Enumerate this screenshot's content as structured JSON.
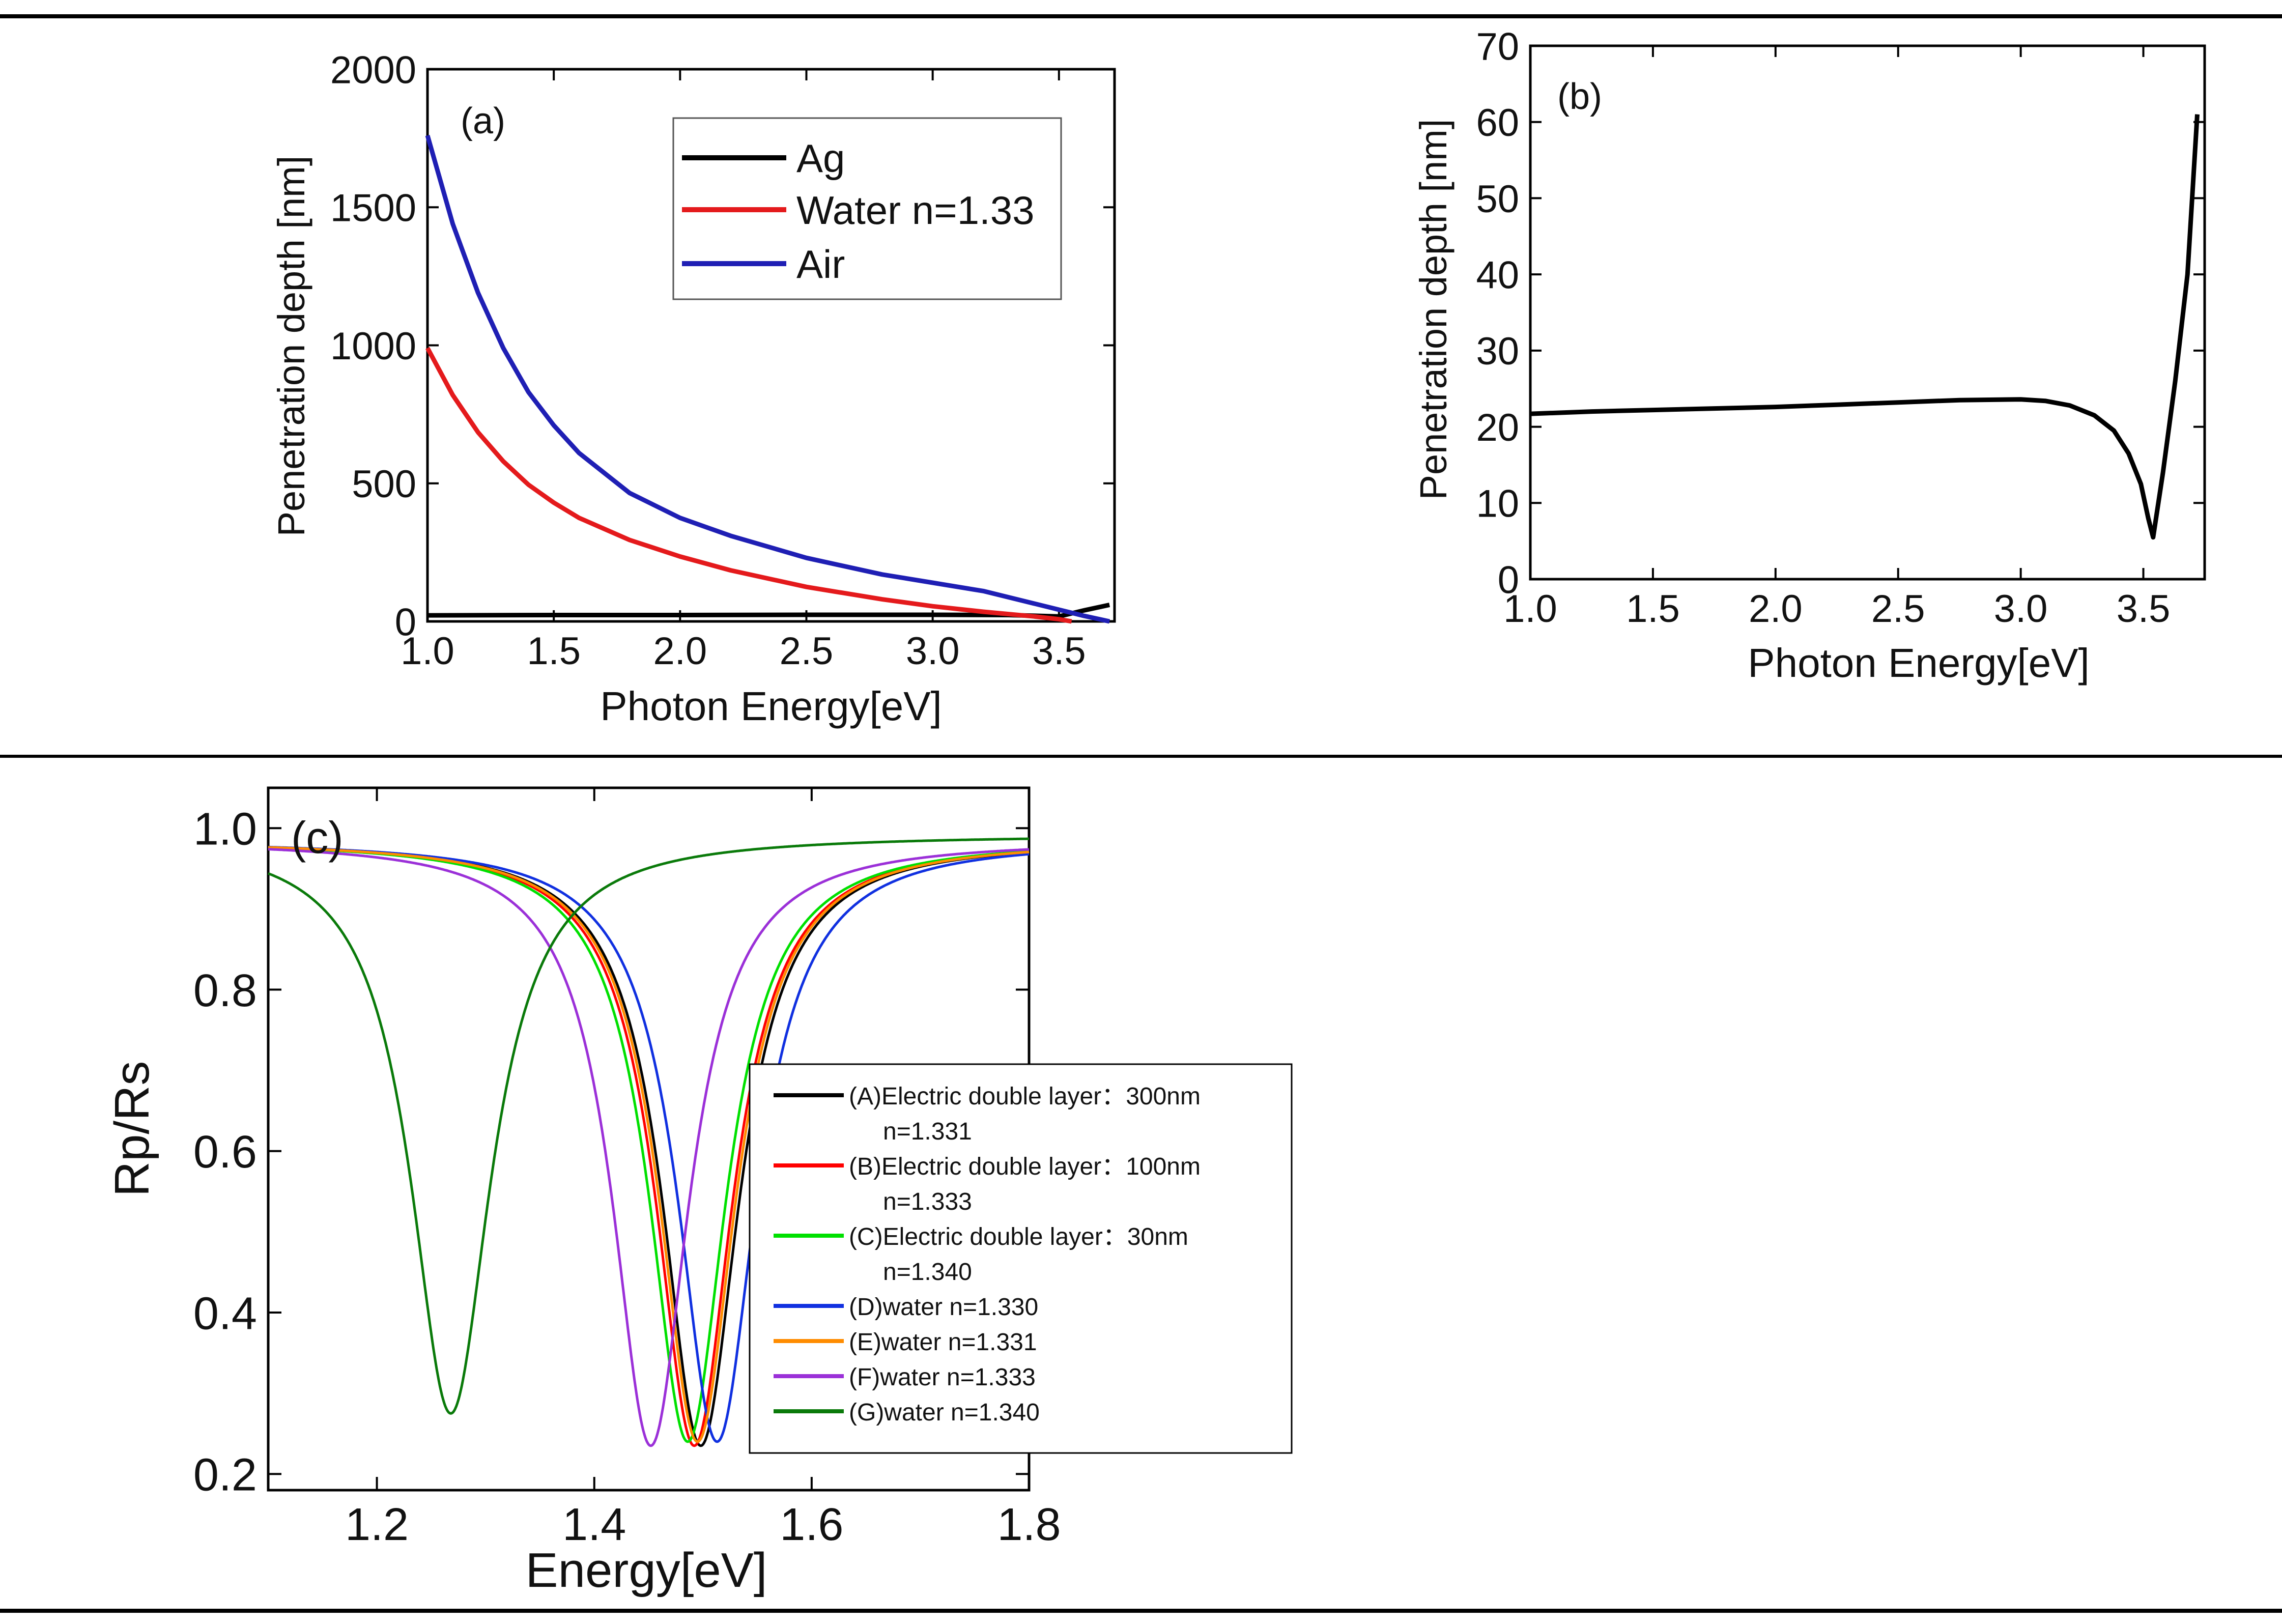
{
  "colors": {
    "ag": "#000000",
    "water": "#e41a1c",
    "air": "#1f1fb4",
    "A": "#000000",
    "B": "#ff0000",
    "C": "#00e000",
    "D": "#1030e0",
    "E": "#ff8c00",
    "F": "#9b30d8",
    "G": "#0a7a0a"
  },
  "chart_data": [
    {
      "id": "a",
      "type": "line",
      "label": "(a)",
      "xlabel": "Photon Energy[eV]",
      "ylabel": "Penetration depth [nm]",
      "xlim": [
        1.0,
        3.72
      ],
      "ylim": [
        0,
        2000
      ],
      "xticks": [
        1.0,
        1.5,
        2.0,
        2.5,
        3.0,
        3.5
      ],
      "xtick_labels": [
        "1.0",
        "1.5",
        "2.0",
        "2.5",
        "3.0",
        "3.5"
      ],
      "yticks": [
        0,
        500,
        1000,
        1500,
        2000
      ],
      "ytick_labels": [
        "0",
        "500",
        "1000",
        "1500",
        "2000"
      ],
      "legend": "top-right",
      "series": [
        {
          "key": "ag",
          "name": "Ag",
          "color": "#000000",
          "x": [
            1.0,
            1.5,
            2.0,
            2.5,
            3.0,
            3.3,
            3.5,
            3.6,
            3.7
          ],
          "y": [
            22,
            23,
            23,
            24,
            24,
            23,
            18,
            40,
            60
          ]
        },
        {
          "key": "water",
          "name": "Water n=1.33",
          "color": "#e41a1c",
          "x": [
            1.0,
            1.1,
            1.2,
            1.3,
            1.4,
            1.5,
            1.6,
            1.8,
            2.0,
            2.2,
            2.5,
            2.8,
            3.0,
            3.2,
            3.4,
            3.5,
            3.55
          ],
          "y": [
            990,
            820,
            685,
            580,
            495,
            430,
            375,
            295,
            235,
            185,
            125,
            80,
            55,
            35,
            18,
            8,
            0
          ]
        },
        {
          "key": "air",
          "name": "Air",
          "color": "#1f1fb4",
          "x": [
            1.0,
            1.1,
            1.2,
            1.3,
            1.4,
            1.5,
            1.6,
            1.8,
            2.0,
            2.2,
            2.5,
            2.8,
            3.0,
            3.2,
            3.4,
            3.6,
            3.7
          ],
          "y": [
            1760,
            1440,
            1190,
            990,
            830,
            710,
            610,
            465,
            375,
            310,
            230,
            170,
            140,
            110,
            65,
            20,
            0
          ]
        }
      ]
    },
    {
      "id": "b",
      "type": "line",
      "label": "(b)",
      "xlabel": "Photon Energy[eV]",
      "ylabel": "Penetration depth [nm]",
      "xlim": [
        1.0,
        3.75
      ],
      "ylim": [
        0,
        70
      ],
      "xticks": [
        1.0,
        1.5,
        2.0,
        2.5,
        3.0,
        3.5
      ],
      "xtick_labels": [
        "1.0",
        "1.5",
        "2.0",
        "2.5",
        "3.0",
        "3.5"
      ],
      "yticks": [
        0,
        10,
        20,
        30,
        40,
        50,
        60,
        70
      ],
      "ytick_labels": [
        "0",
        "10",
        "20",
        "30",
        "40",
        "50",
        "60",
        "70"
      ],
      "series": [
        {
          "key": "ag",
          "name": "Ag",
          "color": "#000000",
          "x": [
            1.0,
            1.25,
            1.5,
            1.75,
            2.0,
            2.25,
            2.5,
            2.75,
            3.0,
            3.1,
            3.2,
            3.3,
            3.38,
            3.44,
            3.49,
            3.52,
            3.54,
            3.58,
            3.63,
            3.68,
            3.72
          ],
          "y": [
            21.7,
            22.0,
            22.2,
            22.4,
            22.6,
            22.9,
            23.2,
            23.5,
            23.6,
            23.4,
            22.8,
            21.5,
            19.5,
            16.5,
            12.5,
            8.0,
            5.5,
            14.0,
            26.0,
            40.0,
            61.0
          ]
        }
      ]
    },
    {
      "id": "c",
      "type": "line",
      "label": "(c)",
      "xlabel": "Energy[eV]",
      "ylabel": "Rp/Rs",
      "xlim": [
        1.1,
        1.8
      ],
      "ylim": [
        0.18,
        1.05
      ],
      "xticks": [
        1.2,
        1.4,
        1.6,
        1.8
      ],
      "xtick_labels": [
        "1.2",
        "1.4",
        "1.6",
        "1.8"
      ],
      "yticks": [
        0.2,
        0.4,
        0.6,
        0.8,
        1.0
      ],
      "ytick_labels": [
        "0.2",
        "0.4",
        "0.6",
        "0.8",
        "1.0"
      ],
      "legend": "bottom-right",
      "series": [
        {
          "key": "A",
          "name": "(A)Electric double layer：300nm",
          "name2": "n=1.331",
          "color": "#000000",
          "center": 1.498,
          "min": 0.235,
          "width": 0.043,
          "base": 0.985
        },
        {
          "key": "B",
          "name": "(B)Electric double layer：100nm",
          "name2": "n=1.333",
          "color": "#ff0000",
          "center": 1.492,
          "min": 0.235,
          "width": 0.043,
          "base": 0.985
        },
        {
          "key": "C",
          "name": "(C)Electric double layer：30nm",
          "name2": "n=1.340",
          "color": "#00e000",
          "center": 1.486,
          "min": 0.24,
          "width": 0.043,
          "base": 0.985
        },
        {
          "key": "D",
          "name": "(D)water n=1.330",
          "name2": "",
          "color": "#1030e0",
          "center": 1.513,
          "min": 0.24,
          "width": 0.044,
          "base": 0.985
        },
        {
          "key": "E",
          "name": "(E)water n=1.331",
          "name2": "",
          "color": "#ff8c00",
          "center": 1.495,
          "min": 0.24,
          "width": 0.043,
          "base": 0.985
        },
        {
          "key": "F",
          "name": "(F)water n=1.333",
          "name2": "",
          "color": "#9b30d8",
          "center": 1.452,
          "min": 0.235,
          "width": 0.043,
          "base": 0.985
        },
        {
          "key": "G",
          "name": "(G)water n=1.340",
          "name2": "",
          "color": "#0a7a0a",
          "center": 1.268,
          "min": 0.275,
          "width": 0.045,
          "base": 0.992
        }
      ]
    }
  ]
}
